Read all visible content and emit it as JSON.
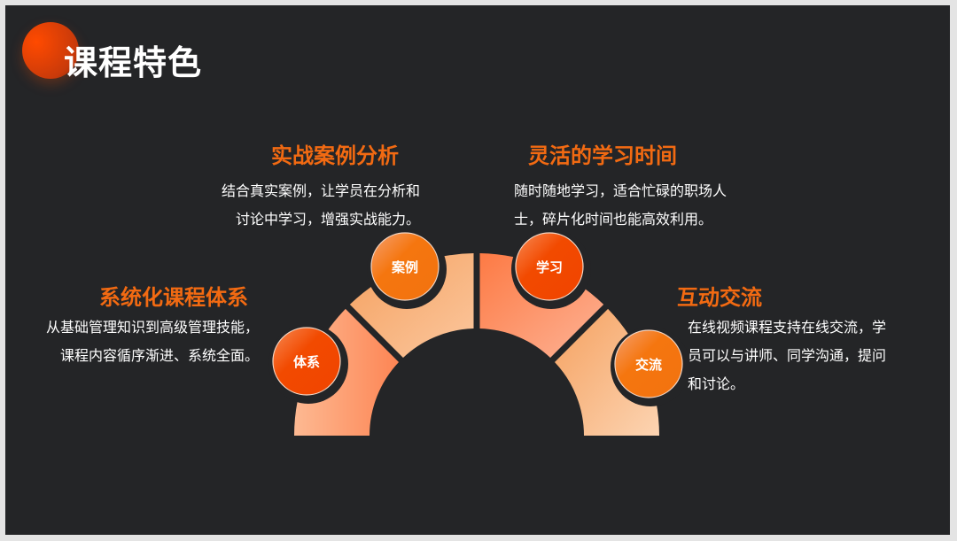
{
  "title": "课程特色",
  "features": [
    {
      "badge": "体系",
      "heading": "系统化课程体系",
      "text": [
        "从基础管理知识到高级管理技能，",
        "课程内容循序渐进、系统全面。"
      ]
    },
    {
      "badge": "案例",
      "heading": "实战案例分析",
      "text": [
        "结合真实案例，让学员在分析和",
        "讨论中学习，增强实战能力。"
      ]
    },
    {
      "badge": "学习",
      "heading": "灵活的学习时间",
      "text": [
        "随时随地学习，适合忙碌的职场人",
        "士，碎片化时间也能高效利用。"
      ]
    },
    {
      "badge": "交流",
      "heading": "互动交流",
      "text": [
        "在线视频课程支持在线交流，学",
        "员可以与讲师、同学沟通，提问",
        "和讨论。"
      ]
    }
  ],
  "colors": {
    "background": "#242527",
    "accent": "#f26a12",
    "badge_red": "#f24a00",
    "badge_orange": "#f5760f"
  }
}
